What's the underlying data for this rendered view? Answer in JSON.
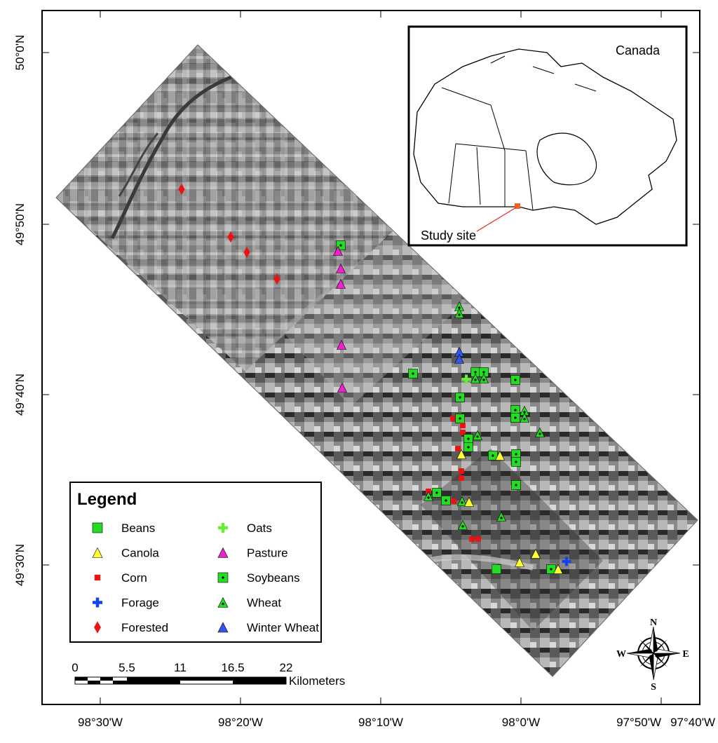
{
  "map": {
    "lat_labels": [
      "50°0'N",
      "49°50'N",
      "49°40'N",
      "49°30'N"
    ],
    "lon_labels": [
      "98°30'W",
      "98°20'W",
      "98°10'W",
      "98°0'W",
      "97°50'W",
      "97°40'W"
    ],
    "legend": {
      "title": "Legend",
      "items": [
        {
          "label": "Beans",
          "symbol": "square",
          "color": "#22dd22"
        },
        {
          "label": "Canola",
          "symbol": "triangle",
          "color": "#ffff33"
        },
        {
          "label": "Corn",
          "symbol": "small-square",
          "color": "#ee1111"
        },
        {
          "label": "Forage",
          "symbol": "cross",
          "color": "#1144ee"
        },
        {
          "label": "Forested",
          "symbol": "diamond",
          "color": "#ee1111"
        },
        {
          "label": "Oats",
          "symbol": "cross",
          "color": "#66ee33"
        },
        {
          "label": "Pasture",
          "symbol": "triangle",
          "color": "#ee22cc"
        },
        {
          "label": "Soybeans",
          "symbol": "dot-square",
          "color": "#22dd22"
        },
        {
          "label": "Wheat",
          "symbol": "dot-triangle",
          "color": "#22dd22"
        },
        {
          "label": "Winter Wheat",
          "symbol": "triangle",
          "color": "#3355ee"
        }
      ]
    },
    "scale_bar": {
      "labels": [
        "0",
        "5.5",
        "11",
        "16.5",
        "22"
      ],
      "unit": "Kilometers"
    },
    "inset": {
      "country_label": "Canada",
      "site_label": "Study site",
      "site_color": "#ee6622",
      "arrow_color": "#ee2222"
    },
    "compass": {
      "n": "N",
      "s": "S",
      "e": "E",
      "w": "W"
    }
  }
}
